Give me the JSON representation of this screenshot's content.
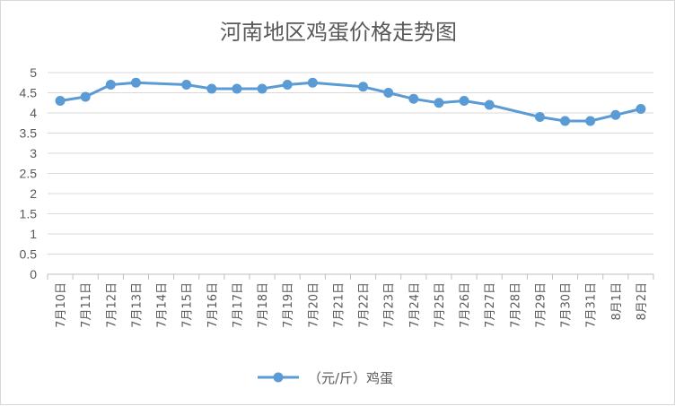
{
  "chart_data": {
    "type": "line",
    "title": "河南地区鸡蛋价格走势图",
    "categories": [
      "7月10日",
      "7月11日",
      "7月12日",
      "7月13日",
      "7月14日",
      "7月15日",
      "7月16日",
      "7月17日",
      "7月18日",
      "7月19日",
      "7月20日",
      "7月21日",
      "7月22日",
      "7月23日",
      "7月24日",
      "7月25日",
      "7月26日",
      "7月27日",
      "7月28日",
      "7月29日",
      "7月30日",
      "7月31日",
      "8月1日",
      "8月2日"
    ],
    "series": [
      {
        "name": "（元/斤）鸡蛋",
        "color": "#5b9bd5",
        "values": [
          4.3,
          4.4,
          4.7,
          4.75,
          null,
          4.7,
          4.6,
          4.6,
          4.6,
          4.7,
          4.75,
          null,
          4.65,
          4.5,
          4.35,
          4.25,
          4.3,
          4.2,
          null,
          3.9,
          3.8,
          3.8,
          3.95,
          4.1
        ]
      }
    ],
    "ylim": [
      0,
      5
    ],
    "yticks": [
      "0",
      "0.5",
      "1",
      "1.5",
      "2",
      "2.5",
      "3",
      "3.5",
      "4",
      "4.5",
      "5"
    ],
    "grid": true,
    "legend": "bottom",
    "gaps_connected": true
  }
}
